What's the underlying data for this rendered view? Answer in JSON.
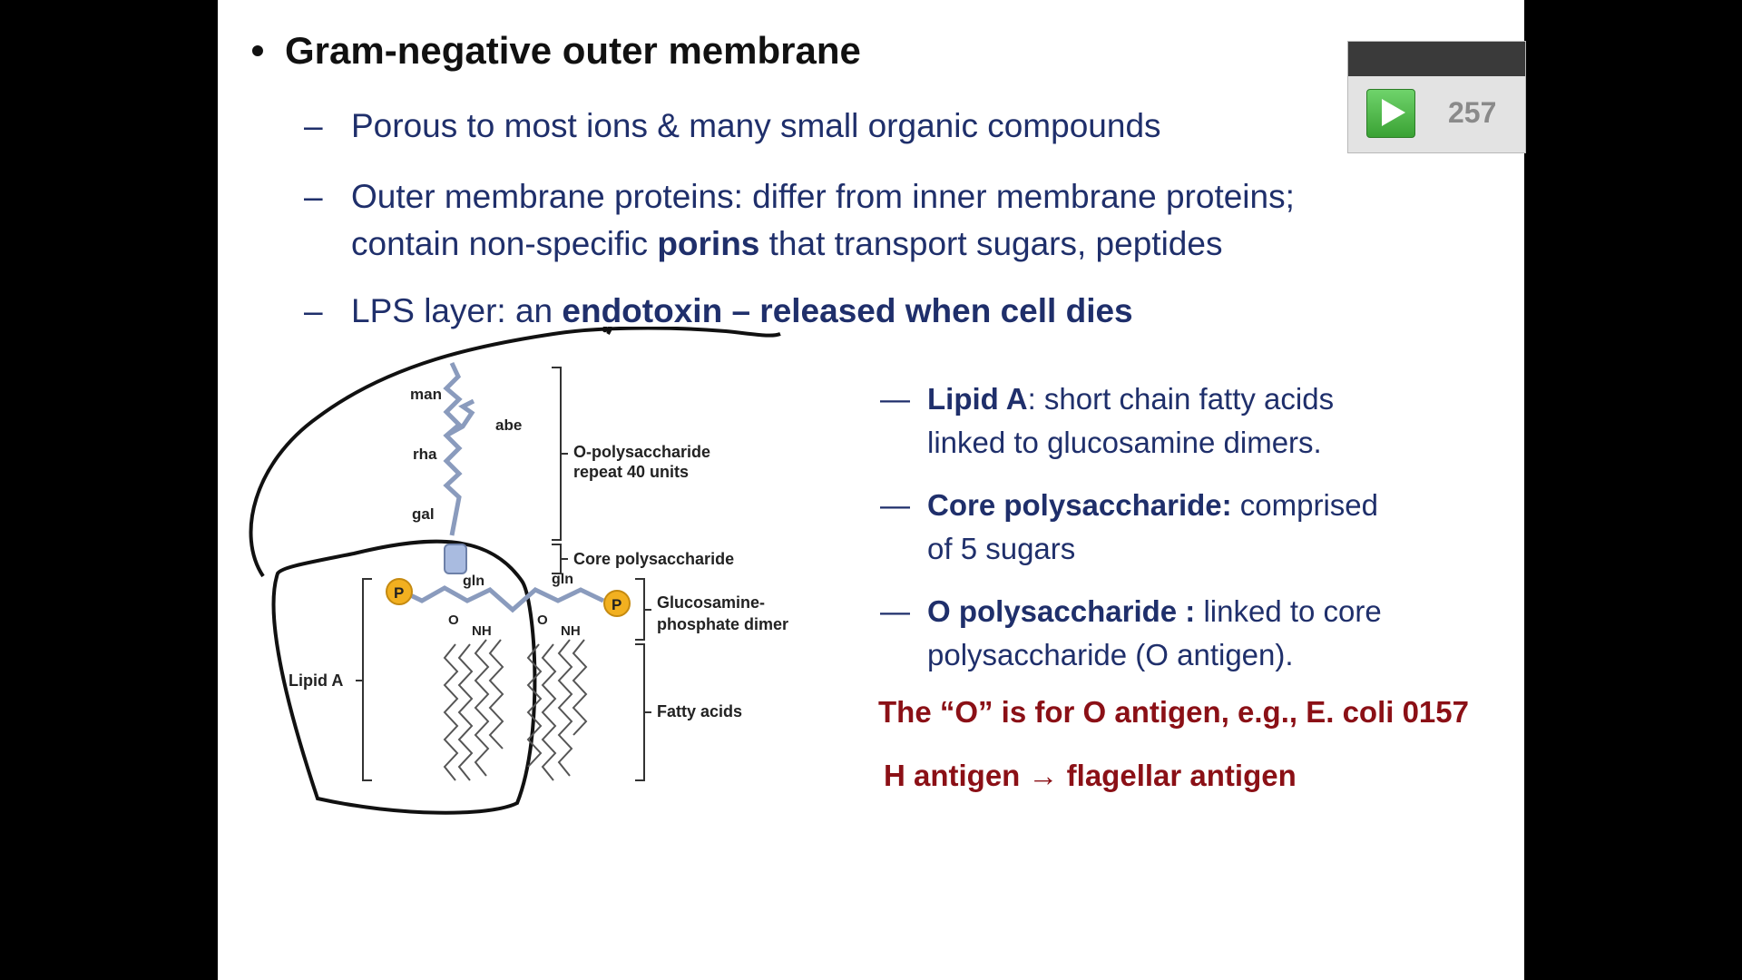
{
  "slide": {
    "title": "Gram-negative outer membrane",
    "bullet": "•",
    "dash": "–",
    "points": [
      {
        "text": "Porous to most ions & many small organic compounds"
      },
      {
        "line1": "Outer membrane proteins: differ from inner membrane proteins;",
        "line2_pre": "contain non-specific ",
        "line2_bold": "porins",
        "line2_post": " that transport sugars, peptides"
      },
      {
        "pre": "LPS layer:  an ",
        "bold": "endotoxin – released when cell dies"
      }
    ],
    "right_dash": "—",
    "right_points": [
      {
        "bold": "Lipid A",
        "rest1": ": short chain fatty acids",
        "line2": "linked to glucosamine dimers."
      },
      {
        "bold": "Core polysaccharide:",
        "rest1": "  comprised",
        "line2": "of 5 sugars"
      },
      {
        "bold": "O polysaccharide :",
        "rest1": "  linked to core",
        "line2": "polysaccharide (O antigen)."
      }
    ],
    "note1": "The “O” is for O antigen, e.g., E. coli 0157",
    "note2": "H antigen → flagellar antigen"
  },
  "diagram": {
    "sugars": [
      "man",
      "abe",
      "rha",
      "gal"
    ],
    "bracket_labels": {
      "o_poly_1": "O-polysaccharide",
      "o_poly_2": "repeat 40 units",
      "core": "Core polysaccharide",
      "gluc_1": "Glucosamine-",
      "gluc_2": "phosphate dimer",
      "fatty": "Fatty acids",
      "lipid_a": "Lipid A"
    },
    "gln": "gln",
    "phosphate": "P",
    "o_label": "O",
    "nh_label": "NH"
  },
  "widget": {
    "count": "257"
  },
  "colors": {
    "navy": "#1f2f6b",
    "maroon": "#8b1016",
    "sugar_chain": "#8a9bbd",
    "phosphate": "#f2b020",
    "play": "#4cbf45"
  }
}
